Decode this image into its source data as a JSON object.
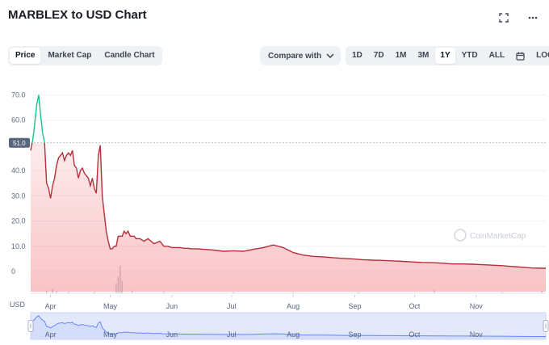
{
  "header": {
    "title": "MARBLEX to USD Chart"
  },
  "icons": {
    "fullscreen": "fullscreen-icon",
    "more": "more-icon",
    "calendar": "calendar-icon",
    "chevron": "chevron-down-icon"
  },
  "tabs": [
    {
      "label": "Price",
      "active": true
    },
    {
      "label": "Market Cap",
      "active": false
    },
    {
      "label": "Candle Chart",
      "active": false
    }
  ],
  "compare": {
    "label": "Compare with"
  },
  "ranges": [
    {
      "label": "1D",
      "active": false
    },
    {
      "label": "7D",
      "active": false
    },
    {
      "label": "1M",
      "active": false
    },
    {
      "label": "3M",
      "active": false
    },
    {
      "label": "1Y",
      "active": true
    },
    {
      "label": "YTD",
      "active": false
    },
    {
      "label": "ALL",
      "active": false
    }
  ],
  "log_label": "LOG",
  "watermark": "CoinMarketCap",
  "colors": {
    "up": "#16c784",
    "down": "#b52e3a",
    "fill_down": "#ea3943",
    "brush_fill": "#e3e8fb",
    "brush_line": "#6188ff"
  },
  "chart_data": {
    "type": "line",
    "currency_label": "USD",
    "y_ticks": [
      "70.0",
      "60.0",
      "50.0",
      "40.0",
      "30.0",
      "20.0",
      "10.0",
      "0"
    ],
    "ylim": [
      -8,
      74
    ],
    "reference_value": 51.0,
    "reference_label": "51.0",
    "x_ticks": [
      {
        "label": "Apr",
        "t": 3
      },
      {
        "label": "May",
        "t": 33
      },
      {
        "label": "Jun",
        "t": 64
      },
      {
        "label": "Jul",
        "t": 94
      },
      {
        "label": "Aug",
        "t": 125
      },
      {
        "label": "Sep",
        "t": 156
      },
      {
        "label": "Oct",
        "t": 186
      },
      {
        "label": "Nov",
        "t": 217
      }
    ],
    "x_range": [
      -7,
      252
    ],
    "series": [
      {
        "x": [
          -7,
          -6,
          -5,
          -4,
          -3,
          -2,
          -1,
          0,
          1,
          2,
          3,
          4,
          5,
          6,
          7,
          8,
          9,
          10,
          11,
          12,
          13,
          14,
          15,
          16,
          17,
          18,
          19,
          20,
          21,
          22,
          23,
          24,
          25,
          26,
          27,
          28,
          29,
          30,
          31,
          32,
          33,
          34,
          35,
          36,
          37,
          38,
          39,
          40,
          41,
          42,
          43,
          44,
          45,
          46,
          48,
          50,
          52,
          55,
          58,
          60,
          62,
          64,
          66,
          68,
          70,
          72,
          74,
          75,
          77,
          80,
          85,
          90,
          95,
          100,
          105,
          110,
          115,
          120,
          125,
          130,
          135,
          140,
          145,
          150,
          155,
          160,
          165,
          170,
          175,
          180,
          185,
          190,
          195,
          200,
          205,
          210,
          215,
          220,
          225,
          230,
          235,
          240,
          245,
          250,
          252
        ],
        "y": [
          48,
          52,
          58,
          66,
          70,
          62,
          55,
          51,
          35,
          33,
          29,
          34,
          37,
          42,
          45,
          46,
          47,
          44,
          46,
          47,
          46,
          48,
          42,
          41,
          37,
          40,
          41,
          39,
          38,
          37,
          34,
          37,
          33,
          31,
          46,
          50,
          30,
          23,
          16,
          12,
          9,
          9,
          10,
          10,
          14,
          14,
          14,
          16,
          15,
          16,
          14,
          14,
          14,
          13,
          13,
          12,
          13,
          11,
          12,
          10,
          10,
          9.5,
          9.5,
          9.5,
          9.2,
          9.2,
          9.0,
          9.0,
          9.0,
          8.8,
          8.5,
          8.0,
          8.2,
          8.0,
          8.8,
          9.5,
          10.5,
          9.5,
          7.5,
          6.5,
          6.0,
          5.8,
          5.5,
          5.2,
          5.0,
          4.7,
          4.5,
          4.4,
          4.2,
          4.0,
          3.8,
          3.6,
          3.5,
          3.3,
          3.0,
          3.0,
          2.9,
          2.7,
          2.5,
          2.3,
          2.0,
          1.7,
          1.4,
          1.3,
          1.3
        ]
      }
    ],
    "volume": [
      {
        "t": 1,
        "v": 0.1
      },
      {
        "t": 4,
        "v": 0.15
      },
      {
        "t": 6,
        "v": 0.08
      },
      {
        "t": 12,
        "v": 0.05
      },
      {
        "t": 25,
        "v": 0.06
      },
      {
        "t": 36,
        "v": 0.35
      },
      {
        "t": 37,
        "v": 0.6
      },
      {
        "t": 38,
        "v": 1.0
      },
      {
        "t": 39,
        "v": 0.45
      },
      {
        "t": 44,
        "v": 0.1
      },
      {
        "t": 60,
        "v": 0.06
      },
      {
        "t": 95,
        "v": 0.05
      },
      {
        "t": 125,
        "v": 0.04
      },
      {
        "t": 158,
        "v": 0.05
      },
      {
        "t": 196,
        "v": 0.12
      },
      {
        "t": 230,
        "v": 0.04
      },
      {
        "t": 250,
        "v": 0.09
      }
    ]
  }
}
